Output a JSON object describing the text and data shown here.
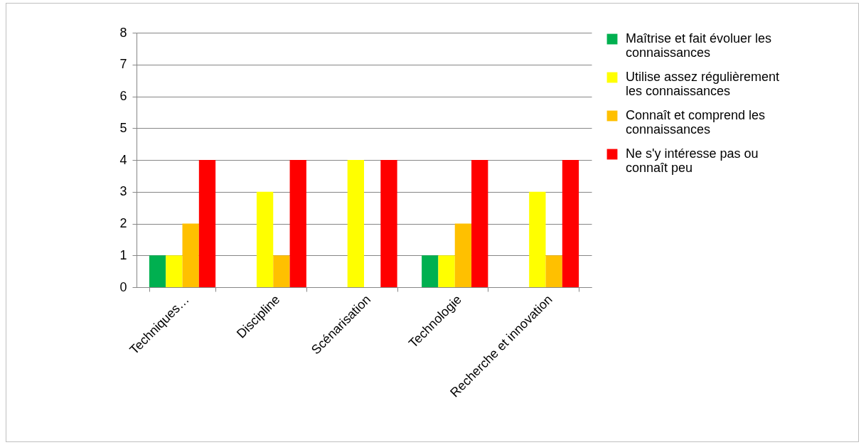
{
  "chart_data": {
    "type": "bar",
    "categories": [
      "Techniques…",
      "Discipline",
      "Scénarisation",
      "Technologie",
      "Recherche et innovation"
    ],
    "series": [
      {
        "name": "Maîtrise et fait évoluer les connaissances",
        "color": "#00b050",
        "values": [
          1,
          0,
          0,
          1,
          0
        ]
      },
      {
        "name": "Utilise assez régulièrement les connaissances",
        "color": "#ffff00",
        "values": [
          1,
          3,
          4,
          1,
          3
        ]
      },
      {
        "name": "Connaît et comprend les connaissances",
        "color": "#ffc000",
        "values": [
          2,
          1,
          0,
          2,
          1
        ]
      },
      {
        "name": "Ne s'y intéresse pas ou connaît peu",
        "color": "#ff0000",
        "values": [
          4,
          4,
          4,
          4,
          4
        ]
      }
    ],
    "ylim": [
      0,
      8
    ],
    "yticks": [
      0,
      1,
      2,
      3,
      4,
      5,
      6,
      7,
      8
    ],
    "grid": "y",
    "legend": "right"
  }
}
